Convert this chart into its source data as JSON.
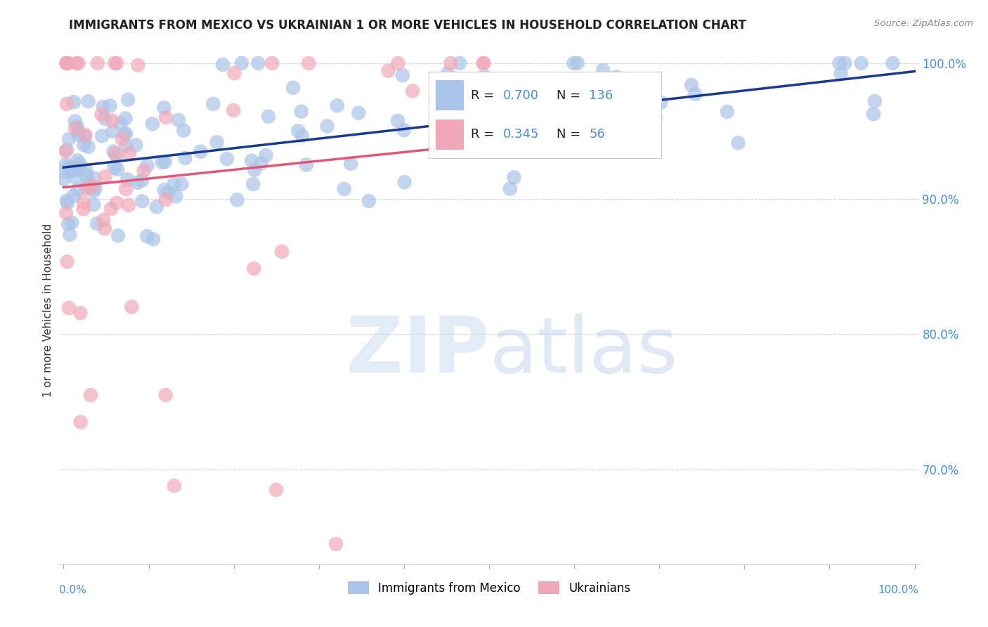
{
  "title": "IMMIGRANTS FROM MEXICO VS UKRAINIAN 1 OR MORE VEHICLES IN HOUSEHOLD CORRELATION CHART",
  "source": "Source: ZipAtlas.com",
  "ylabel": "1 or more Vehicles in Household",
  "legend_mexico_r": "0.700",
  "legend_mexico_n": "136",
  "legend_ukraine_r": "0.345",
  "legend_ukraine_n": "56",
  "mexico_color": "#aac4e8",
  "mexico_edge": "#aac4e8",
  "ukraine_color": "#f0a8b8",
  "ukraine_edge": "#f0a8b8",
  "mexico_line_color": "#1a3a8c",
  "ukraine_line_color": "#e05878",
  "background_color": "#ffffff",
  "watermark_zip": "ZIP",
  "watermark_atlas": "atlas",
  "ytick_vals": [
    0.7,
    0.8,
    0.9,
    1.0
  ],
  "ytick_labels": [
    "70.0%",
    "80.0%",
    "90.0%",
    "100.0%"
  ],
  "ymin": 0.63,
  "ymax": 1.005,
  "xmin": -0.005,
  "xmax": 1.005
}
